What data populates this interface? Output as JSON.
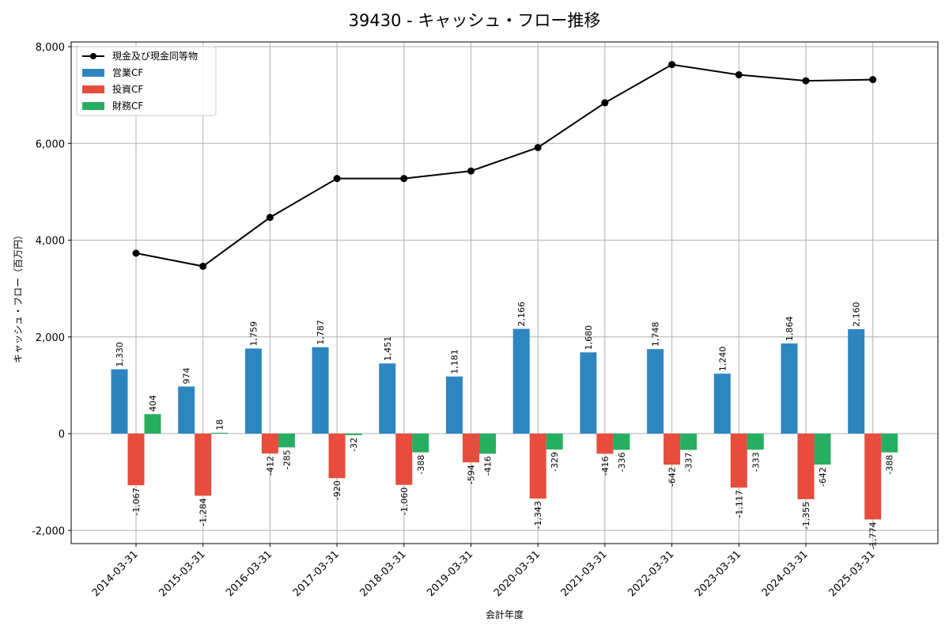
{
  "chart_data": {
    "type": "bar",
    "title": "39430 - キャッシュ・フロー推移",
    "xlabel": "会計年度",
    "ylabel": "キャッシュ・フロー（百万円）",
    "ylim": [
      -2250,
      8100
    ],
    "yticks": [
      -2000,
      0,
      2000,
      4000,
      6000,
      8000
    ],
    "ytick_labels": [
      "-2,000",
      "0",
      "2,000",
      "4,000",
      "6,000",
      "8,000"
    ],
    "grid": true,
    "legend_position": "top-left",
    "categories": [
      "2014-03-31",
      "2015-03-31",
      "2016-03-31",
      "2017-03-31",
      "2018-03-31",
      "2019-03-31",
      "2020-03-31",
      "2021-03-31",
      "2022-03-31",
      "2023-03-31",
      "2024-03-31",
      "2025-03-31"
    ],
    "series": [
      {
        "name": "営業CF",
        "kind": "bar",
        "color": "#2e86c1",
        "values": [
          1330,
          974,
          1759,
          1787,
          1451,
          1181,
          2166,
          1680,
          1748,
          1240,
          1864,
          2160
        ],
        "labels": [
          "1,330",
          "974",
          "1,759",
          "1,787",
          "1,451",
          "1,181",
          "2,166",
          "1,680",
          "1,748",
          "1,240",
          "1,864",
          "2,160"
        ]
      },
      {
        "name": "投資CF",
        "kind": "bar",
        "color": "#e74c3c",
        "values": [
          -1067,
          -1284,
          -412,
          -920,
          -1060,
          -594,
          -1343,
          -416,
          -642,
          -1117,
          -1355,
          -1774
        ],
        "labels": [
          "-1,067",
          "-1,284",
          "-412",
          "-920",
          "-1,060",
          "-594",
          "-1,343",
          "-416",
          "-642",
          "-1,117",
          "-1,355",
          "-1,774"
        ]
      },
      {
        "name": "財務CF",
        "kind": "bar",
        "color": "#27ae60",
        "values": [
          404,
          18,
          -285,
          -32,
          -388,
          -416,
          -329,
          -336,
          -337,
          -333,
          -642,
          -388
        ],
        "labels": [
          "404",
          "18",
          "-285",
          "-32",
          "-388",
          "-416",
          "-329",
          "-336",
          "-337",
          "-333",
          "-642",
          "-388"
        ]
      },
      {
        "name": "現金及び現金同等物",
        "kind": "line",
        "color": "#000000",
        "values": [
          3730,
          3460,
          4470,
          5275,
          5275,
          5430,
          5915,
          6840,
          7630,
          7420,
          7295,
          7320
        ]
      }
    ],
    "legend_order": [
      "現金及び現金同等物",
      "営業CF",
      "投資CF",
      "財務CF"
    ]
  }
}
